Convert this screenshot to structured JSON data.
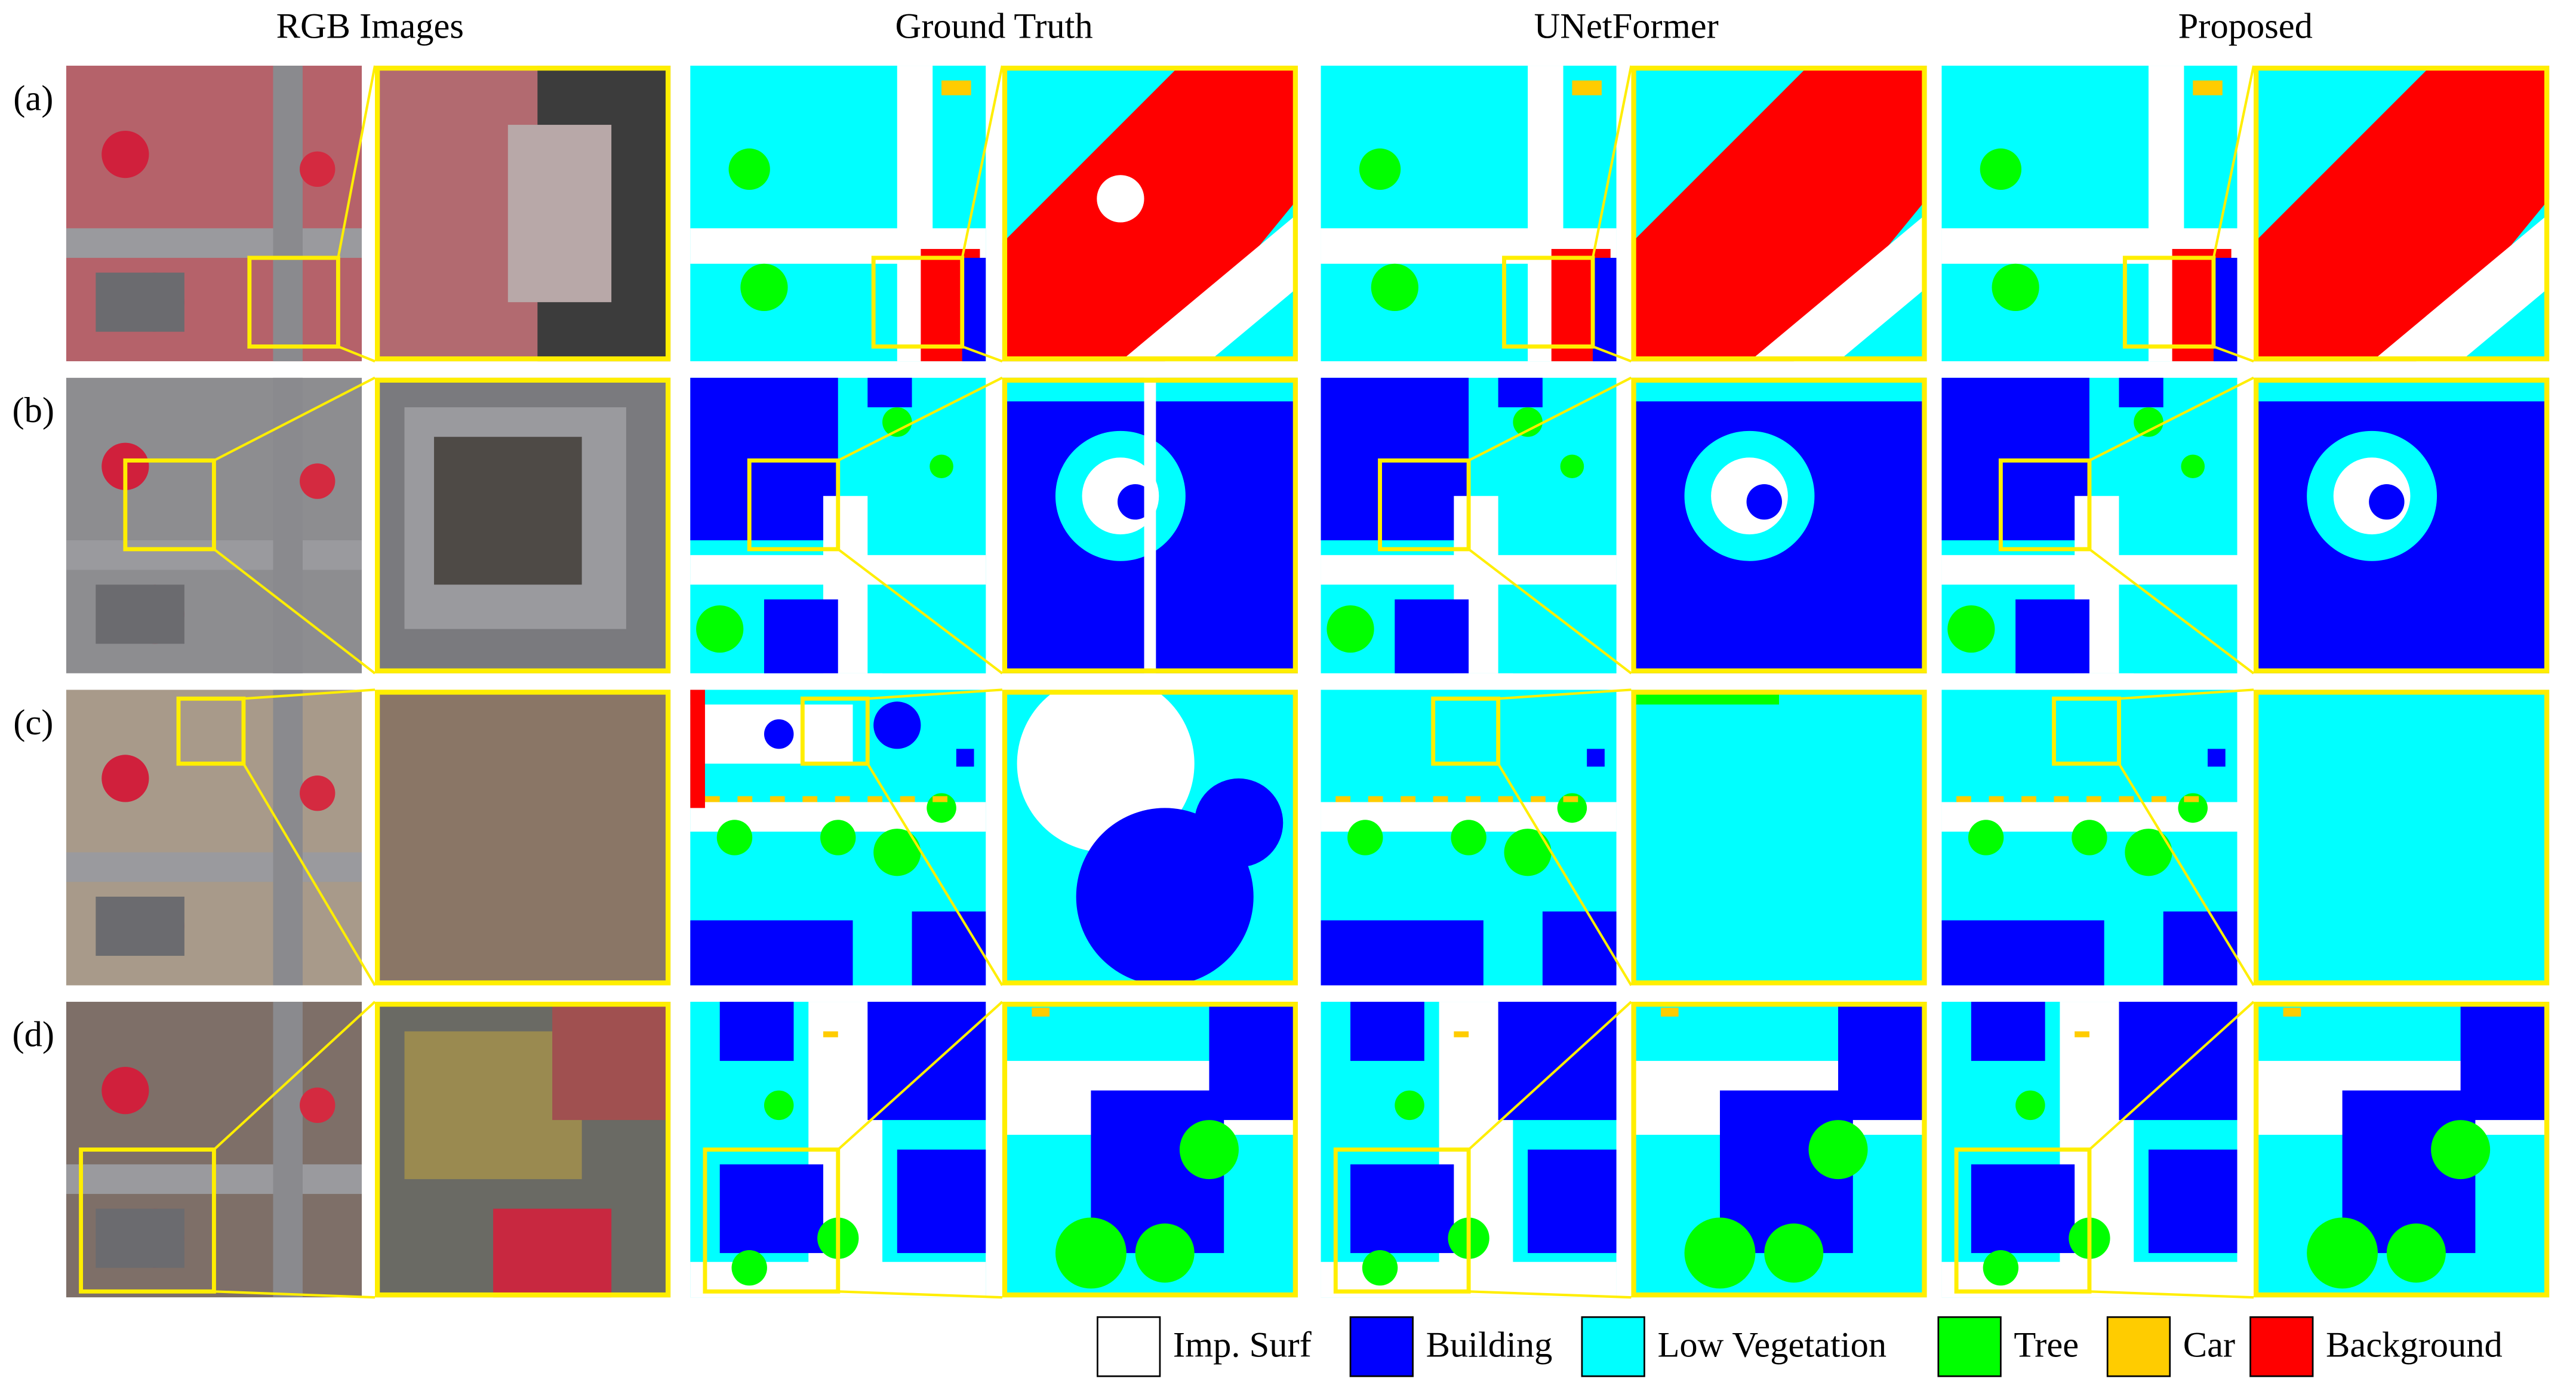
{
  "columns": [
    "RGB Images",
    "Ground Truth",
    "UNetFormer",
    "Proposed"
  ],
  "rows": [
    "(a)",
    "(b)",
    "(c)",
    "(d)"
  ],
  "legend": [
    {
      "label": "Imp. Surf",
      "color": "#ffffff"
    },
    {
      "label": "Building",
      "color": "#0000ff"
    },
    {
      "label": "Low Vegetation",
      "color": "#00ffff"
    },
    {
      "label": "Tree",
      "color": "#00ff00"
    },
    {
      "label": "Car",
      "color": "#ffcc00"
    },
    {
      "label": "Background",
      "color": "#ff0000"
    }
  ]
}
